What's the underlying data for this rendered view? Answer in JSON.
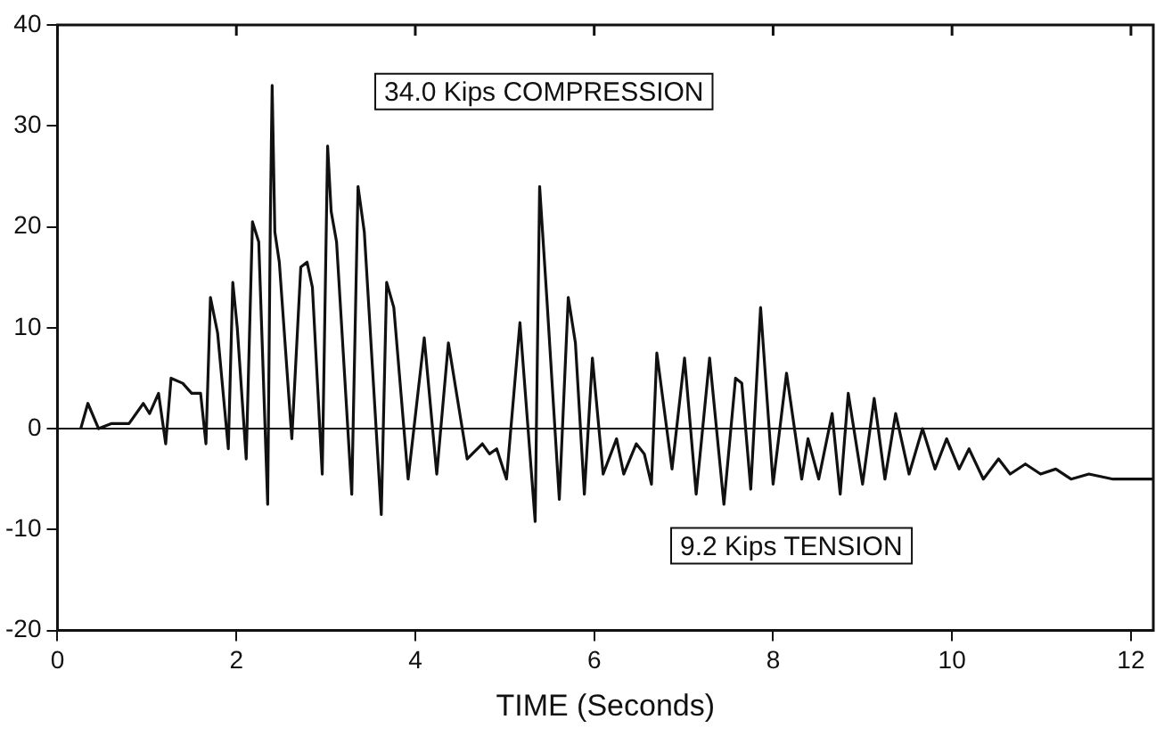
{
  "chart_data": {
    "type": "line",
    "xlabel": "TIME (Seconds)",
    "x": [
      0.26,
      0.34,
      0.46,
      0.6,
      0.8,
      0.96,
      1.03,
      1.13,
      1.21,
      1.27,
      1.4,
      1.5,
      1.6,
      1.66,
      1.71,
      1.79,
      1.91,
      1.96,
      2.01,
      2.11,
      2.18,
      2.25,
      2.35,
      2.38,
      2.4,
      2.43,
      2.48,
      2.62,
      2.72,
      2.79,
      2.85,
      2.96,
      3.02,
      3.06,
      3.12,
      3.29,
      3.36,
      3.43,
      3.62,
      3.68,
      3.76,
      3.92,
      4.1,
      4.24,
      4.37,
      4.58,
      4.75,
      4.83,
      4.91,
      5.02,
      5.17,
      5.34,
      5.39,
      5.47,
      5.61,
      5.71,
      5.79,
      5.89,
      5.98,
      6.1,
      6.25,
      6.33,
      6.47,
      6.56,
      6.64,
      6.7,
      6.87,
      7.01,
      7.14,
      7.29,
      7.45,
      7.58,
      7.65,
      7.75,
      7.86,
      8.0,
      8.15,
      8.32,
      8.39,
      8.51,
      8.66,
      8.75,
      8.84,
      9.0,
      9.13,
      9.25,
      9.37,
      9.52,
      9.67,
      9.81,
      9.94,
      10.08,
      10.19,
      10.35,
      10.52,
      10.65,
      10.82,
      10.99,
      11.16,
      11.33,
      11.53,
      11.8,
      12.24
    ],
    "series": [
      {
        "color": "#111111",
        "values": [
          0,
          2.5,
          0,
          0.5,
          0.5,
          2.5,
          1.5,
          3.5,
          -1.5,
          5,
          4.5,
          3.5,
          3.5,
          -1.5,
          13,
          9.5,
          -2,
          14.5,
          10,
          -3,
          20.5,
          18.5,
          -7.5,
          21,
          34,
          19.5,
          16.5,
          -1,
          16,
          16.5,
          14,
          -4.5,
          28,
          21.5,
          18.5,
          -6.5,
          24,
          19.5,
          -8.5,
          14.5,
          12,
          -5,
          9,
          -4.5,
          8.5,
          -3,
          -1.5,
          -2.5,
          -2,
          -5,
          10.5,
          -9.2,
          24,
          13,
          -7,
          13,
          8.5,
          -6.5,
          7,
          -4.5,
          -1,
          -4.5,
          -1.5,
          -2.5,
          -5.5,
          7.5,
          -4,
          7,
          -6.5,
          7,
          -7.5,
          5,
          4.5,
          -6,
          12,
          -5.5,
          5.5,
          -5,
          -1,
          -5,
          1.5,
          -6.5,
          3.5,
          -5.5,
          3,
          -5,
          1.5,
          -4.5,
          0,
          -4,
          -1,
          -4,
          -2,
          -5,
          -3,
          -4.5,
          -3.5,
          -4.5,
          -4,
          -5,
          -4.5,
          -5,
          -5
        ]
      }
    ],
    "xlim": [
      0,
      12.25
    ],
    "xticks": [
      0,
      2,
      4,
      6,
      8,
      10,
      12
    ],
    "ylim": [
      -20,
      40
    ],
    "yticks": [
      -20,
      -10,
      0,
      10,
      20,
      30,
      40
    ],
    "ref_lines": [
      {
        "axis": "y",
        "value": 0,
        "color": "#111111"
      }
    ],
    "annotations": [
      "34.0 Kips COMPRESSION",
      "9.2 Kips TENSION"
    ],
    "grid": false,
    "legend": false,
    "marker": "none",
    "line_style": "solid"
  }
}
